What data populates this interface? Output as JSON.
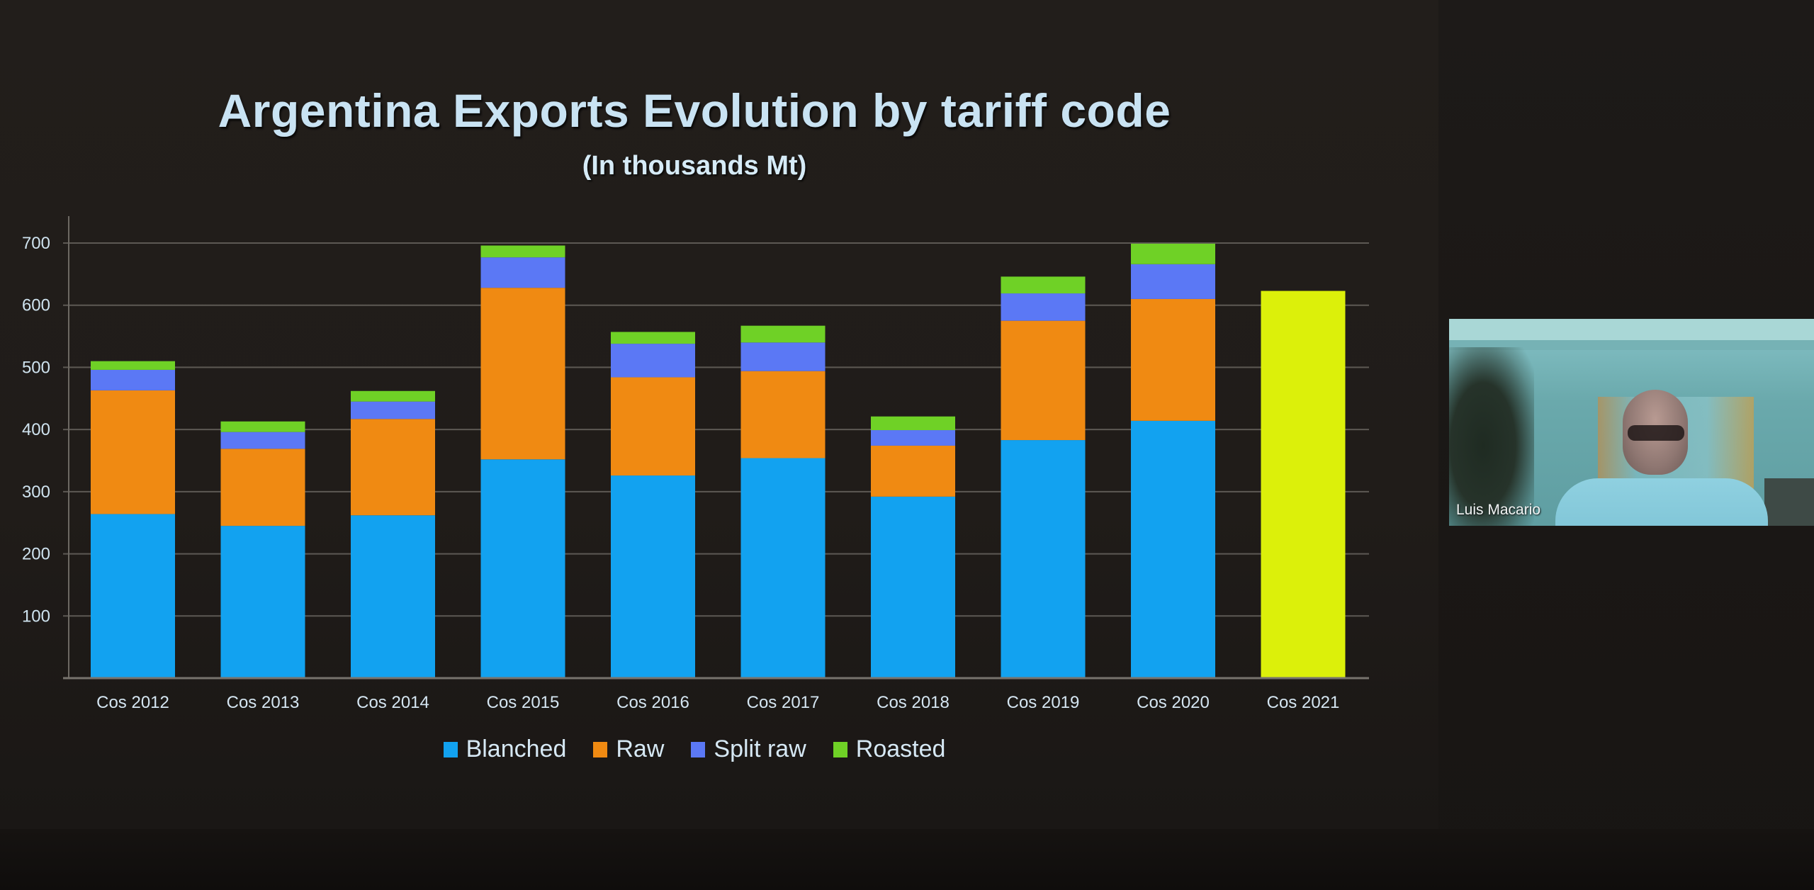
{
  "slide": {
    "title": "Argentina Exports Evolution by tariff code",
    "subtitle": "(In thousands Mt)"
  },
  "chart_data": {
    "type": "bar",
    "stacked": true,
    "title": "Argentina Exports Evolution by tariff code",
    "subtitle": "(In thousands Mt)",
    "xlabel": "",
    "ylabel": "",
    "ylim": [
      0,
      700
    ],
    "yticks": [
      100,
      200,
      300,
      400,
      500,
      600,
      700
    ],
    "grid": true,
    "legend_position": "bottom",
    "categories": [
      "Cos 2012",
      "Cos 2013",
      "Cos 2014",
      "Cos 2015",
      "Cos 2016",
      "Cos 2017",
      "Cos 2018",
      "Cos 2019",
      "Cos 2020",
      "Cos 2021"
    ],
    "series": [
      {
        "name": "Blanched",
        "color": "#12a2f0",
        "values": [
          264,
          245,
          262,
          352,
          326,
          354,
          292,
          383,
          414,
          null
        ]
      },
      {
        "name": "Raw",
        "color": "#f08a12",
        "values": [
          199,
          124,
          155,
          276,
          158,
          140,
          82,
          192,
          196,
          null
        ]
      },
      {
        "name": "Split raw",
        "color": "#5b78f5",
        "values": [
          33,
          27,
          28,
          49,
          54,
          46,
          25,
          44,
          56,
          null
        ]
      },
      {
        "name": "Roasted",
        "color": "#6fd126",
        "values": [
          14,
          17,
          17,
          19,
          19,
          27,
          22,
          27,
          33,
          null
        ]
      }
    ],
    "totals": [
      510,
      413,
      462,
      696,
      557,
      567,
      421,
      646,
      699,
      623
    ],
    "highlight": {
      "category": "Cos 2021",
      "value": 623,
      "color": "#dcf00a",
      "note": "total only, no breakdown"
    }
  },
  "legend": [
    {
      "label": "Blanched",
      "color": "#12a2f0"
    },
    {
      "label": "Raw",
      "color": "#f08a12"
    },
    {
      "label": "Split raw",
      "color": "#5b78f5"
    },
    {
      "label": "Roasted",
      "color": "#6fd126"
    }
  ],
  "webcam": {
    "participant_name": "Luis Macario"
  }
}
